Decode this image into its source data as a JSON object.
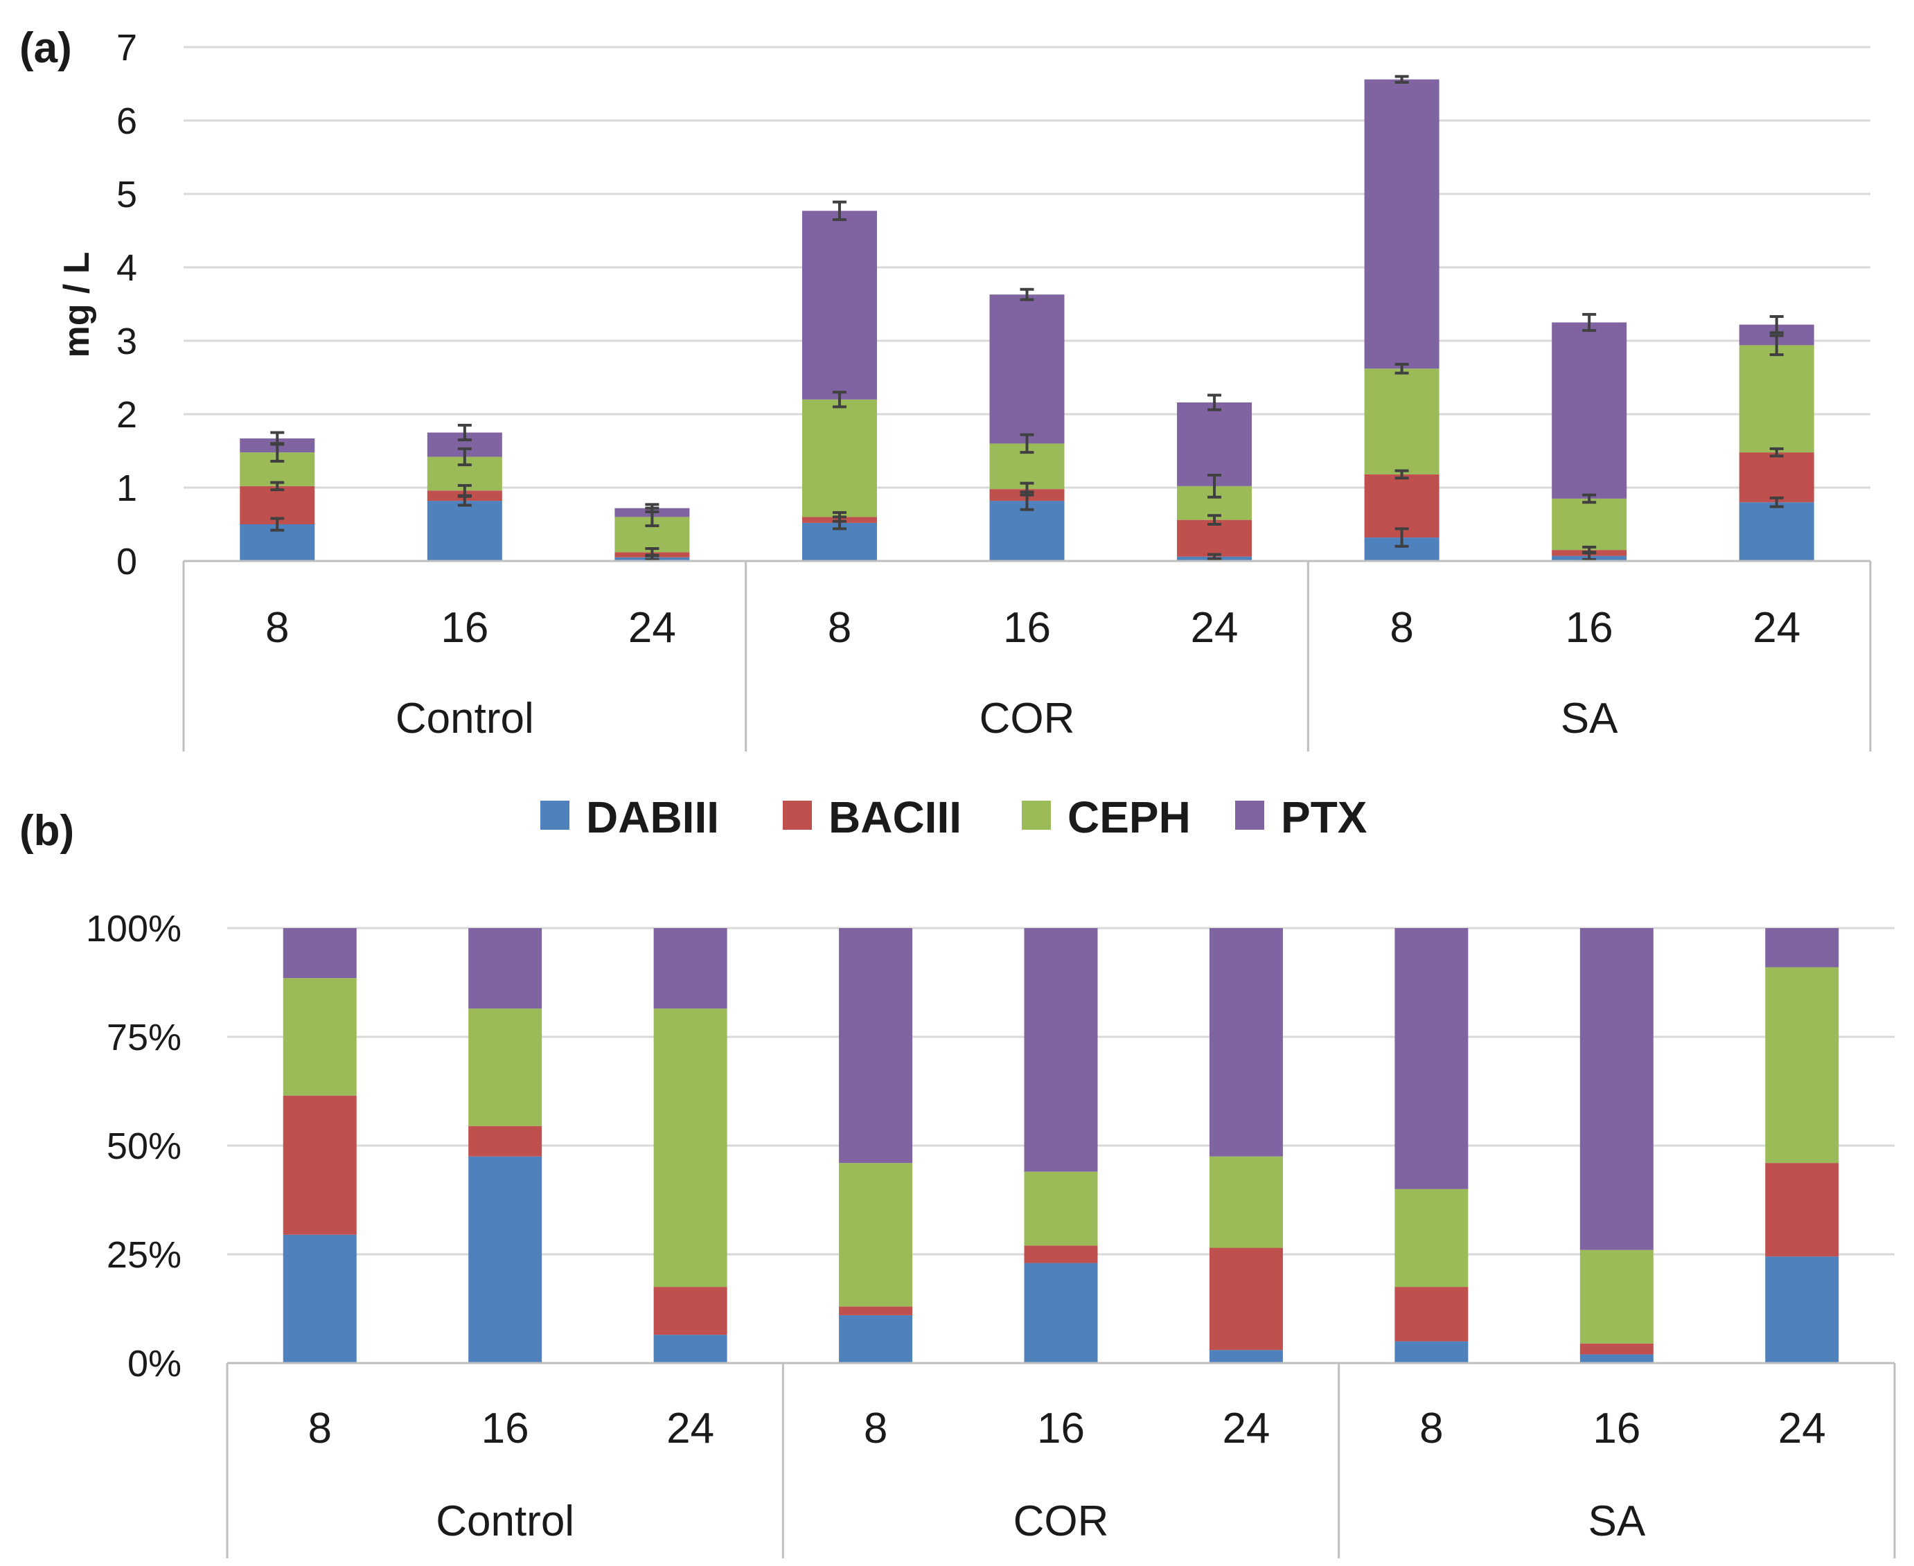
{
  "colors": {
    "DABIII": "#4f81bd",
    "BACIII": "#c0504d",
    "CEPH": "#9bbb59",
    "PTX": "#8064a2"
  },
  "legend": [
    "DABIII",
    "BACIII",
    "CEPH",
    "PTX"
  ],
  "chart_data": [
    {
      "panel_label": "(a)",
      "type": "bar",
      "stacked": true,
      "ylabel": "mg / L",
      "ylim": [
        0,
        7
      ],
      "yticks": [
        "0",
        "1",
        "2",
        "3",
        "4",
        "5",
        "6",
        "7"
      ],
      "groups": [
        "Control",
        "COR",
        "SA"
      ],
      "times": [
        "8",
        "16",
        "24"
      ],
      "series": [
        {
          "name": "DABIII",
          "values": [
            0.5,
            0.82,
            0.05,
            0.52,
            0.82,
            0.06,
            0.32,
            0.07,
            0.8
          ],
          "errors": [
            0.08,
            0.06,
            0.03,
            0.08,
            0.12,
            0.03,
            0.12,
            0.05,
            0.06
          ]
        },
        {
          "name": "BACIII",
          "values": [
            0.52,
            0.14,
            0.07,
            0.08,
            0.16,
            0.5,
            0.86,
            0.08,
            0.68
          ],
          "errors": [
            0.05,
            0.07,
            0.05,
            0.06,
            0.08,
            0.06,
            0.05,
            0.04,
            0.05
          ]
        },
        {
          "name": "CEPH",
          "values": [
            0.46,
            0.46,
            0.48,
            1.6,
            0.62,
            0.46,
            1.44,
            0.7,
            1.46
          ],
          "errors": [
            0.12,
            0.11,
            0.12,
            0.1,
            0.12,
            0.15,
            0.06,
            0.05,
            0.13
          ]
        },
        {
          "name": "PTX",
          "values": [
            0.19,
            0.33,
            0.12,
            2.57,
            2.03,
            1.14,
            3.94,
            2.4,
            0.28
          ],
          "errors": [
            0.08,
            0.1,
            0.05,
            0.12,
            0.07,
            0.1,
            0.04,
            0.11,
            0.11
          ]
        }
      ]
    },
    {
      "panel_label": "(b)",
      "type": "bar",
      "stacked": true,
      "percent": true,
      "ylim": [
        0,
        100
      ],
      "yticks": [
        "0%",
        "25%",
        "50%",
        "75%",
        "100%"
      ],
      "groups": [
        "Control",
        "COR",
        "SA"
      ],
      "times": [
        "8",
        "16",
        "24"
      ],
      "series": [
        {
          "name": "DABIII",
          "values": [
            29.5,
            47.5,
            6.5,
            11,
            23,
            3,
            5,
            2,
            24.5
          ]
        },
        {
          "name": "BACIII",
          "values": [
            32,
            7,
            11,
            2,
            4,
            23.5,
            12.5,
            2.5,
            21.5
          ]
        },
        {
          "name": "CEPH",
          "values": [
            27,
            27,
            64,
            33,
            17,
            21,
            22.5,
            21.5,
            45
          ]
        },
        {
          "name": "PTX",
          "values": [
            11.5,
            18.5,
            18.5,
            54,
            56,
            52.5,
            60,
            74,
            9
          ]
        }
      ]
    }
  ]
}
